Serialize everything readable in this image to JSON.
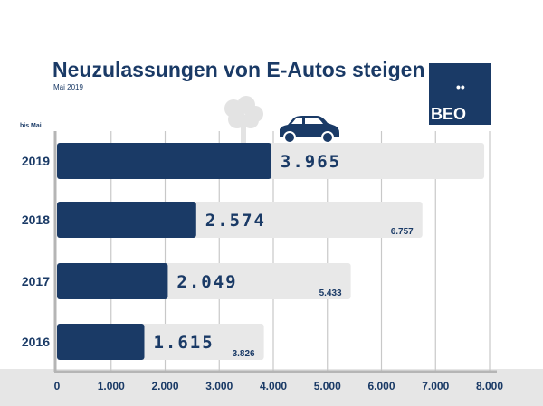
{
  "header": {
    "title": "Neuzulassungen von E-Autos steigen",
    "subtitle": "Mai 2019"
  },
  "logo": {
    "text": "BEO",
    "dots": "••"
  },
  "colors": {
    "primary": "#1a3a66",
    "secondary": "#e8e8e8",
    "grid": "#c8c8c8"
  },
  "icons": [
    "tree-icon",
    "car-icon"
  ],
  "chart_data": {
    "type": "bar",
    "orientation": "horizontal",
    "category_label": "bis Mai",
    "categories": [
      "2019",
      "2018",
      "2017",
      "2016"
    ],
    "series": [
      {
        "values": [
          3965,
          2574,
          2049,
          1615
        ],
        "labels": [
          "3.965",
          "2.574",
          "2.049",
          "1.615"
        ]
      },
      {
        "values": [
          7900,
          6757,
          5433,
          3826
        ],
        "labels": [
          "",
          "6.757",
          "5.433",
          "3.826"
        ]
      }
    ],
    "xlim": [
      0,
      8000
    ],
    "xticks": [
      0,
      1000,
      2000,
      3000,
      4000,
      5000,
      6000,
      7000,
      8000
    ],
    "xtick_labels": [
      "0",
      "1.000",
      "2.000",
      "3.000",
      "4.000",
      "5.000",
      "6.000",
      "7.000",
      "8.000"
    ],
    "grid": true
  }
}
